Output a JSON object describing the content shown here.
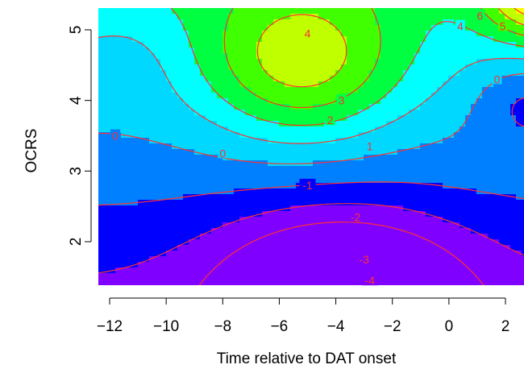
{
  "chart_data": {
    "type": "heatmap",
    "subtype": "filled contour with contour lines",
    "xlabel": "Time relative to DAT onset",
    "ylabel": "OCRS",
    "xlim": [
      -12,
      2.6
    ],
    "ylim": [
      1.38,
      5.3
    ],
    "x_ticks": [
      "-12",
      "-10",
      "-8",
      "-6",
      "-4",
      "-2",
      "0",
      "2"
    ],
    "y_ticks": [
      "2",
      "3",
      "4",
      "5"
    ],
    "levels": [
      -4,
      -3,
      -2,
      -1,
      0,
      1,
      2,
      3,
      4,
      5,
      6
    ],
    "fill_colors": [
      "#8000ff",
      "#0000ff",
      "#0080ff",
      "#00d8ff",
      "#00ffff",
      "#00ff40",
      "#40ff00",
      "#c0ff00",
      "#ffff00",
      "#ffd060",
      "#ffb080"
    ],
    "line_color": "#ff3030",
    "grid": false,
    "legend": "none",
    "contour_labels": [
      {
        "text": "-4",
        "x": -2.8,
        "y": 1.45
      },
      {
        "text": "-3",
        "x": -3.0,
        "y": 1.75
      },
      {
        "text": "-2",
        "x": -3.3,
        "y": 2.35
      },
      {
        "text": "-1",
        "x": -5.0,
        "y": 2.8
      },
      {
        "text": "0",
        "x": -8.0,
        "y": 3.25
      },
      {
        "text": "0",
        "x": -11.8,
        "y": 3.5
      },
      {
        "text": "0",
        "x": 1.7,
        "y": 4.3
      },
      {
        "text": "1",
        "x": -2.8,
        "y": 3.35
      },
      {
        "text": "2",
        "x": -4.2,
        "y": 3.72
      },
      {
        "text": "3",
        "x": -3.8,
        "y": 4.0
      },
      {
        "text": "4",
        "x": -5.0,
        "y": 4.95
      },
      {
        "text": "4",
        "x": 0.4,
        "y": 5.05
      },
      {
        "text": "5",
        "x": 1.9,
        "y": 5.05
      },
      {
        "text": "6",
        "x": 1.1,
        "y": 5.2
      }
    ]
  }
}
